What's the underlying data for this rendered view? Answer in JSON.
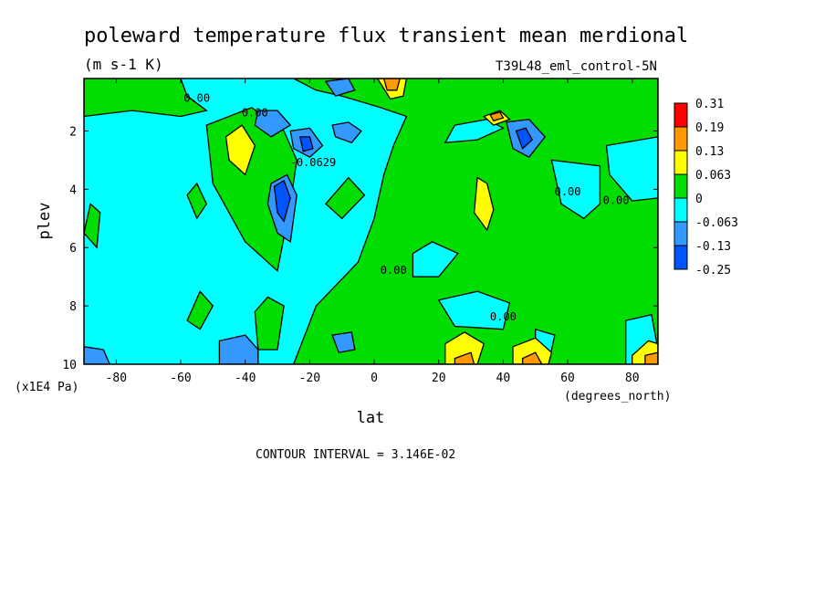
{
  "chart_data": {
    "type": "contour",
    "title": "poleward temperature flux transient mean merdional",
    "units": "(m s-1 K)",
    "dataset_label": "T39L48_eml_control-5N",
    "xlabel": "lat",
    "x_units": "(degrees_north)",
    "ylabel": "plev",
    "y_units": "(x1E4 Pa)",
    "xlim": [
      -90,
      88
    ],
    "ylim": [
      10,
      0.2
    ],
    "x_ticks": [
      -80,
      -60,
      -40,
      -20,
      0,
      20,
      40,
      60,
      80
    ],
    "x_tick_labels": [
      "-80",
      "-60",
      "-40",
      "-20",
      "0",
      "20",
      "40",
      "60",
      "80"
    ],
    "y_ticks": [
      2,
      4,
      6,
      8,
      10
    ],
    "y_tick_labels": [
      "2",
      "4",
      "6",
      "8",
      "10"
    ],
    "contour_interval_text": "CONTOUR INTERVAL = 3.146E-02",
    "contour_labels": [
      {
        "text": "0.00",
        "lat": -55,
        "plev": 1.0
      },
      {
        "text": "0.00",
        "lat": -37,
        "plev": 1.5
      },
      {
        "text": "-0.0629",
        "lat": -19,
        "plev": 3.2
      },
      {
        "text": "0.00",
        "lat": 6,
        "plev": 6.9
      },
      {
        "text": "0.00",
        "lat": 40,
        "plev": 8.5
      },
      {
        "text": "0.00",
        "lat": 60,
        "plev": 4.2
      },
      {
        "text": "0.00",
        "lat": 75,
        "plev": 4.5
      },
      {
        "text": "0.00",
        "lat": -13,
        "plev": 0.2
      }
    ],
    "legend": {
      "levels": [
        "0.31",
        "0.19",
        "0.13",
        "0.063",
        "0",
        "-0.063",
        "-0.13",
        "-0.25"
      ],
      "colors": [
        "#ff0000",
        "#ff9900",
        "#ffff00",
        "#00dd00",
        "#00ffff",
        "#00ffff",
        "#3399ff",
        "#0055ff"
      ],
      "band_colors": [
        "#ff0000",
        "#ff9900",
        "#ffff00",
        "#00dd00",
        "#00ffff",
        "#3399ff",
        "#0055ff"
      ]
    },
    "fill_colors": {
      "background": "#00ffff",
      "positive_small": "#00dd00",
      "positive_mid": "#ffff00",
      "positive_high": "#ff9900",
      "negative_mid": "#3399ff",
      "negative_high": "#0055ff"
    },
    "regions": {
      "green": [
        {
          "pts": [
            [
              -25,
              0.2
            ],
            [
              88,
              0.2
            ],
            [
              88,
              10
            ],
            [
              -25,
              10
            ],
            [
              -18,
              8
            ],
            [
              -5,
              6.5
            ],
            [
              0,
              5
            ],
            [
              3,
              3.5
            ],
            [
              6,
              2.5
            ],
            [
              10,
              1.5
            ],
            [
              2,
              1.2
            ],
            [
              -10,
              0.8
            ],
            [
              -18,
              0.6
            ]
          ]
        },
        {
          "pts": [
            [
              -90,
              0.2
            ],
            [
              -60,
              0.2
            ],
            [
              -58,
              0.8
            ],
            [
              -52,
              1.3
            ],
            [
              -60,
              1.5
            ],
            [
              -75,
              1.3
            ],
            [
              -90,
              1.5
            ]
          ]
        },
        {
          "pts": [
            [
              -52,
              1.8
            ],
            [
              -38,
              1.2
            ],
            [
              -28,
              2.0
            ],
            [
              -24,
              3.0
            ],
            [
              -26,
              4.5
            ],
            [
              -30,
              6.8
            ],
            [
              -40,
              5.8
            ],
            [
              -50,
              3.8
            ]
          ]
        },
        {
          "pts": [
            [
              -90,
              5.5
            ],
            [
              -88,
              4.5
            ],
            [
              -85,
              4.8
            ],
            [
              -86,
              6.0
            ]
          ]
        },
        {
          "pts": [
            [
              -58,
              4.2
            ],
            [
              -55,
              3.8
            ],
            [
              -52,
              4.5
            ],
            [
              -55,
              5.0
            ]
          ]
        },
        {
          "pts": [
            [
              -58,
              8.5
            ],
            [
              -54,
              7.5
            ],
            [
              -50,
              8.0
            ],
            [
              -54,
              8.8
            ]
          ]
        },
        {
          "pts": [
            [
              -37,
              8.2
            ],
            [
              -33,
              7.7
            ],
            [
              -28,
              8.0
            ],
            [
              -30,
              9.5
            ],
            [
              -36,
              9.5
            ]
          ]
        },
        {
          "pts": [
            [
              -15,
              4.5
            ],
            [
              -8,
              3.6
            ],
            [
              -3,
              4.2
            ],
            [
              -10,
              5.0
            ]
          ]
        }
      ],
      "cyan_in_green": [
        {
          "pts": [
            [
              25,
              1.8
            ],
            [
              35,
              1.6
            ],
            [
              40,
              1.9
            ],
            [
              32,
              2.3
            ],
            [
              22,
              2.4
            ]
          ]
        },
        {
          "pts": [
            [
              12,
              6.2
            ],
            [
              18,
              5.8
            ],
            [
              26,
              6.2
            ],
            [
              20,
              7.0
            ],
            [
              12,
              7.0
            ]
          ]
        },
        {
          "pts": [
            [
              20,
              7.8
            ],
            [
              32,
              7.5
            ],
            [
              42,
              7.9
            ],
            [
              40,
              8.8
            ],
            [
              25,
              8.7
            ]
          ]
        },
        {
          "pts": [
            [
              55,
              3.0
            ],
            [
              70,
              3.2
            ],
            [
              70,
              4.5
            ],
            [
              65,
              5.0
            ],
            [
              58,
              4.5
            ]
          ]
        },
        {
          "pts": [
            [
              72,
              2.5
            ],
            [
              88,
              2.2
            ],
            [
              88,
              4.3
            ],
            [
              80,
              4.4
            ],
            [
              73,
              3.5
            ]
          ]
        },
        {
          "pts": [
            [
              50,
              8.8
            ],
            [
              56,
              9.0
            ],
            [
              54,
              10.0
            ],
            [
              50,
              10.0
            ]
          ]
        },
        {
          "pts": [
            [
              78,
              8.5
            ],
            [
              86,
              8.3
            ],
            [
              88,
              9.5
            ],
            [
              82,
              10.0
            ],
            [
              78,
              10.0
            ]
          ]
        }
      ],
      "yellow": [
        {
          "pts": [
            [
              -46,
              2.2
            ],
            [
              -41,
              1.8
            ],
            [
              -37,
              2.5
            ],
            [
              -40,
              3.5
            ],
            [
              -45,
              3.0
            ]
          ]
        },
        {
          "pts": [
            [
              32,
              3.6
            ],
            [
              35,
              3.8
            ],
            [
              37,
              4.7
            ],
            [
              35,
              5.4
            ],
            [
              31,
              4.8
            ]
          ]
        },
        {
          "pts": [
            [
              1,
              0.2
            ],
            [
              10,
              0.2
            ],
            [
              9,
              0.8
            ],
            [
              5,
              0.9
            ]
          ]
        },
        {
          "pts": [
            [
              34,
              1.5
            ],
            [
              39,
              1.3
            ],
            [
              42,
              1.6
            ],
            [
              37,
              1.8
            ]
          ]
        },
        {
          "pts": [
            [
              22,
              9.3
            ],
            [
              28,
              8.9
            ],
            [
              34,
              9.3
            ],
            [
              32,
              10.0
            ],
            [
              22,
              10.0
            ]
          ]
        },
        {
          "pts": [
            [
              43,
              9.4
            ],
            [
              50,
              9.1
            ],
            [
              55,
              9.6
            ],
            [
              54,
              10.0
            ],
            [
              43,
              10.0
            ]
          ]
        },
        {
          "pts": [
            [
              80,
              9.7
            ],
            [
              85,
              9.2
            ],
            [
              88,
              9.3
            ],
            [
              88,
              10.0
            ],
            [
              80,
              10.0
            ]
          ]
        }
      ],
      "orange": [
        {
          "pts": [
            [
              3,
              0.2
            ],
            [
              8,
              0.2
            ],
            [
              7,
              0.6
            ],
            [
              4,
              0.6
            ]
          ]
        },
        {
          "pts": [
            [
              36,
              1.45
            ],
            [
              39,
              1.35
            ],
            [
              40,
              1.55
            ],
            [
              37,
              1.65
            ]
          ]
        },
        {
          "pts": [
            [
              25,
              9.8
            ],
            [
              30,
              9.6
            ],
            [
              31,
              10.0
            ],
            [
              25,
              10.0
            ]
          ]
        },
        {
          "pts": [
            [
              46,
              9.8
            ],
            [
              50,
              9.6
            ],
            [
              52,
              10.0
            ],
            [
              46,
              10.0
            ]
          ]
        },
        {
          "pts": [
            [
              84,
              9.7
            ],
            [
              88,
              9.6
            ],
            [
              88,
              10.0
            ],
            [
              84,
              10.0
            ]
          ]
        }
      ],
      "blue": [
        {
          "pts": [
            [
              -36,
              1.3
            ],
            [
              -30,
              1.3
            ],
            [
              -26,
              1.8
            ],
            [
              -32,
              2.2
            ],
            [
              -37,
              1.8
            ]
          ]
        },
        {
          "pts": [
            [
              -26,
              2.0
            ],
            [
              -20,
              1.9
            ],
            [
              -16,
              2.5
            ],
            [
              -20,
              2.9
            ],
            [
              -25,
              2.6
            ]
          ]
        },
        {
          "pts": [
            [
              -32,
              3.8
            ],
            [
              -27,
              3.5
            ],
            [
              -24,
              4.2
            ],
            [
              -26,
              5.8
            ],
            [
              -30,
              5.5
            ],
            [
              -33,
              4.5
            ]
          ]
        },
        {
          "pts": [
            [
              -13,
              1.8
            ],
            [
              -8,
              1.7
            ],
            [
              -4,
              2.0
            ],
            [
              -7,
              2.4
            ],
            [
              -12,
              2.2
            ]
          ]
        },
        {
          "pts": [
            [
              -15,
              0.3
            ],
            [
              -8,
              0.2
            ],
            [
              -6,
              0.6
            ],
            [
              -12,
              0.8
            ]
          ]
        },
        {
          "pts": [
            [
              -48,
              9.2
            ],
            [
              -40,
              9.0
            ],
            [
              -36,
              9.5
            ],
            [
              -36,
              10.0
            ],
            [
              -48,
              10.0
            ]
          ]
        },
        {
          "pts": [
            [
              -13,
              9.0
            ],
            [
              -7,
              8.9
            ],
            [
              -6,
              9.5
            ],
            [
              -11,
              9.6
            ]
          ]
        },
        {
          "pts": [
            [
              -90,
              9.4
            ],
            [
              -84,
              9.5
            ],
            [
              -82,
              10.0
            ],
            [
              -90,
              10.0
            ]
          ]
        },
        {
          "pts": [
            [
              41,
              1.7
            ],
            [
              48,
              1.6
            ],
            [
              53,
              2.2
            ],
            [
              48,
              2.9
            ],
            [
              43,
              2.6
            ]
          ]
        }
      ],
      "darkblue": [
        {
          "pts": [
            [
              -31,
              3.9
            ],
            [
              -28,
              3.7
            ],
            [
              -26,
              4.3
            ],
            [
              -28,
              5.1
            ],
            [
              -30,
              4.8
            ]
          ]
        },
        {
          "pts": [
            [
              -23,
              2.2
            ],
            [
              -20,
              2.2
            ],
            [
              -19,
              2.6
            ],
            [
              -22,
              2.7
            ]
          ]
        },
        {
          "pts": [
            [
              44,
              2.0
            ],
            [
              47,
              1.9
            ],
            [
              49,
              2.3
            ],
            [
              46,
              2.6
            ]
          ]
        }
      ]
    }
  }
}
